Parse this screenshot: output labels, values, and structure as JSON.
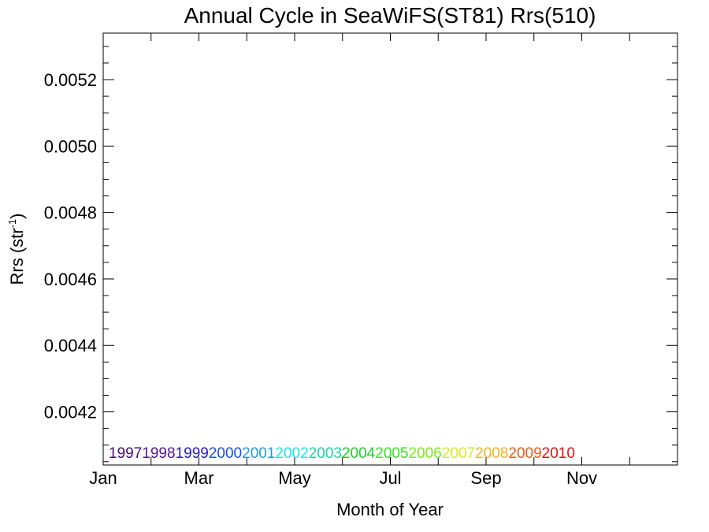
{
  "chart_data": {
    "type": "line",
    "title": "Annual Cycle in SeaWiFS(ST81) Rrs(510)",
    "xlabel": "Month of Year",
    "ylabel": {
      "base": "Rrs (str",
      "superscript": "-1",
      "close": ")"
    },
    "x_ticks": [
      "Jan",
      "Mar",
      "May",
      "Jul",
      "Sep",
      "Nov"
    ],
    "x_tick_positions": [
      0,
      2,
      4,
      6,
      8,
      10
    ],
    "xlim": [
      0,
      12
    ],
    "ylim": [
      0.00404,
      0.00534
    ],
    "y_ticks": [
      0.0042,
      0.0044,
      0.0046,
      0.0048,
      0.005,
      0.0052
    ],
    "y_tick_labels": [
      "0.0042",
      "0.0044",
      "0.0046",
      "0.0048",
      "0.0050",
      "0.0052"
    ],
    "grid": false,
    "legend_placement": "bottom inside plot, horizontal row",
    "series": [
      {
        "name": "1997",
        "color": "#4a0a6e",
        "values": []
      },
      {
        "name": "1998",
        "color": "#5b109c",
        "values": []
      },
      {
        "name": "1999",
        "color": "#2418c8",
        "values": []
      },
      {
        "name": "2000",
        "color": "#1a4ee6",
        "values": []
      },
      {
        "name": "2001",
        "color": "#1a9cee",
        "values": []
      },
      {
        "name": "2002",
        "color": "#18e6ea",
        "values": []
      },
      {
        "name": "2003",
        "color": "#1ad6a0",
        "values": []
      },
      {
        "name": "2004",
        "color": "#18d028",
        "values": []
      },
      {
        "name": "2005",
        "color": "#2ee81a",
        "values": []
      },
      {
        "name": "2006",
        "color": "#7ce81a",
        "values": []
      },
      {
        "name": "2007",
        "color": "#d6f01c",
        "values": []
      },
      {
        "name": "2008",
        "color": "#f0b41c",
        "values": []
      },
      {
        "name": "2009",
        "color": "#ee5a18",
        "values": []
      },
      {
        "name": "2010",
        "color": "#e01212",
        "values": []
      }
    ]
  }
}
